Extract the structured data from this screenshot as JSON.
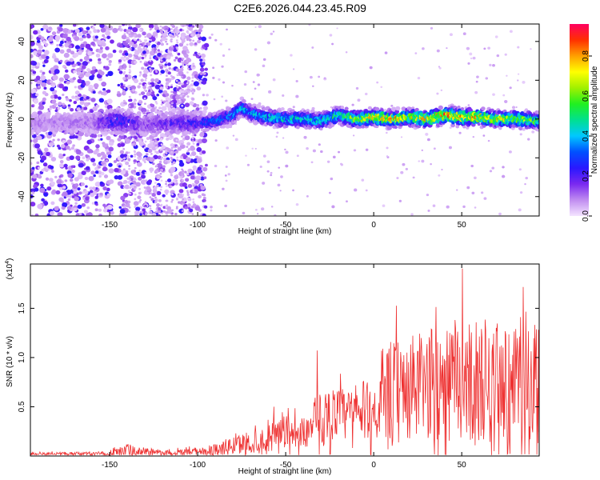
{
  "chart_data": [
    {
      "type": "heatmap",
      "title": "C2E6.2026.044.23.45.R09",
      "xlabel": "Height of straight line (km)",
      "ylabel": "Frequency (Hz)",
      "xlim": [
        -195,
        94
      ],
      "ylim": [
        -50,
        49
      ],
      "xticks": [
        -150,
        -100,
        -50,
        0,
        50
      ],
      "yticks": [
        -40,
        -20,
        0,
        20,
        40
      ],
      "colorbar": {
        "label": "Normalized spectral amplitude",
        "range": [
          0.0,
          0.96
        ],
        "ticks": [
          0.0,
          0.2,
          0.4,
          0.6,
          0.8
        ],
        "tick_labels": [
          "0.0",
          "0.2",
          "0.4",
          "0.6",
          "0.8"
        ],
        "colors": [
          "#f4e4ff",
          "#c08cf0",
          "#7a28f0",
          "#2a18ff",
          "#0050ff",
          "#00c8ff",
          "#00e090",
          "#20f020",
          "#a0f000",
          "#ffff00",
          "#ffa000",
          "#ff3000",
          "#ff0060"
        ]
      },
      "ridge": {
        "description_values": "frequency center of spectral ridge vs height",
        "x": [
          -195,
          -160,
          -145,
          -130,
          -115,
          -100,
          -90,
          -80,
          -75,
          -70,
          -60,
          -50,
          -40,
          -30,
          -20,
          -10,
          0,
          10,
          20,
          30,
          40,
          50,
          60,
          70,
          80,
          94
        ],
        "y": [
          -2,
          -2,
          -1,
          -3,
          -2,
          -2,
          -1,
          2,
          6,
          3,
          1,
          0,
          0,
          -1,
          2,
          0,
          1,
          0,
          1,
          0,
          2,
          1,
          1,
          0,
          0,
          -1
        ],
        "peak_amplitude": [
          0.1,
          0.12,
          0.3,
          0.15,
          0.2,
          0.25,
          0.35,
          0.4,
          0.42,
          0.4,
          0.45,
          0.5,
          0.45,
          0.5,
          0.55,
          0.65,
          0.8,
          0.85,
          0.75,
          0.8,
          0.88,
          0.85,
          0.8,
          0.75,
          0.7,
          0.6
        ]
      }
    },
    {
      "type": "line",
      "xlabel": "Height of straight line (km)",
      "ylabel": "SNR (10 * v/v)",
      "scale_label": "(x10",
      "scale_exp": "4",
      "scale_close": ")",
      "xlim": [
        -195,
        94
      ],
      "ylim": [
        0,
        19500
      ],
      "xticks": [
        -150,
        -100,
        -50,
        0,
        50
      ],
      "yticks": [
        5000,
        10000,
        15000
      ],
      "ytick_labels": [
        "0.5",
        "1.0",
        "1.5"
      ],
      "color": "#ee3030",
      "envelope": {
        "x": [
          -195,
          -150,
          -140,
          -120,
          -100,
          -90,
          -80,
          -70,
          -60,
          -55,
          -50,
          -45,
          -40,
          -35,
          -32,
          -30,
          -28,
          -25,
          -20,
          -15,
          -10,
          -5,
          0,
          5,
          10,
          15,
          20,
          25,
          30,
          35,
          40,
          45,
          50,
          55,
          60,
          65,
          70,
          75,
          80,
          85,
          90,
          94
        ],
        "mean": [
          200,
          250,
          500,
          300,
          400,
          700,
          1000,
          1400,
          1600,
          2000,
          2200,
          2000,
          2400,
          2800,
          3200,
          3600,
          4000,
          4200,
          4300,
          4100,
          4300,
          4600,
          4500,
          4800,
          6200,
          6400,
          6700,
          7000,
          7200,
          7400,
          7600,
          7700,
          7800,
          7400,
          7600,
          7300,
          7200,
          6800,
          6600,
          6300,
          5800,
          5600
        ],
        "amp": [
          200,
          250,
          900,
          300,
          500,
          800,
          1200,
          1600,
          1800,
          2400,
          2600,
          1800,
          1900,
          2400,
          5000,
          3500,
          3800,
          3200,
          3500,
          3400,
          3700,
          3900,
          3800,
          4500,
          7500,
          6500,
          6800,
          7000,
          7200,
          7400,
          7600,
          7600,
          7800,
          7800,
          8500,
          8200,
          9000,
          8600,
          8000,
          8000,
          10000,
          9000
        ]
      }
    }
  ]
}
